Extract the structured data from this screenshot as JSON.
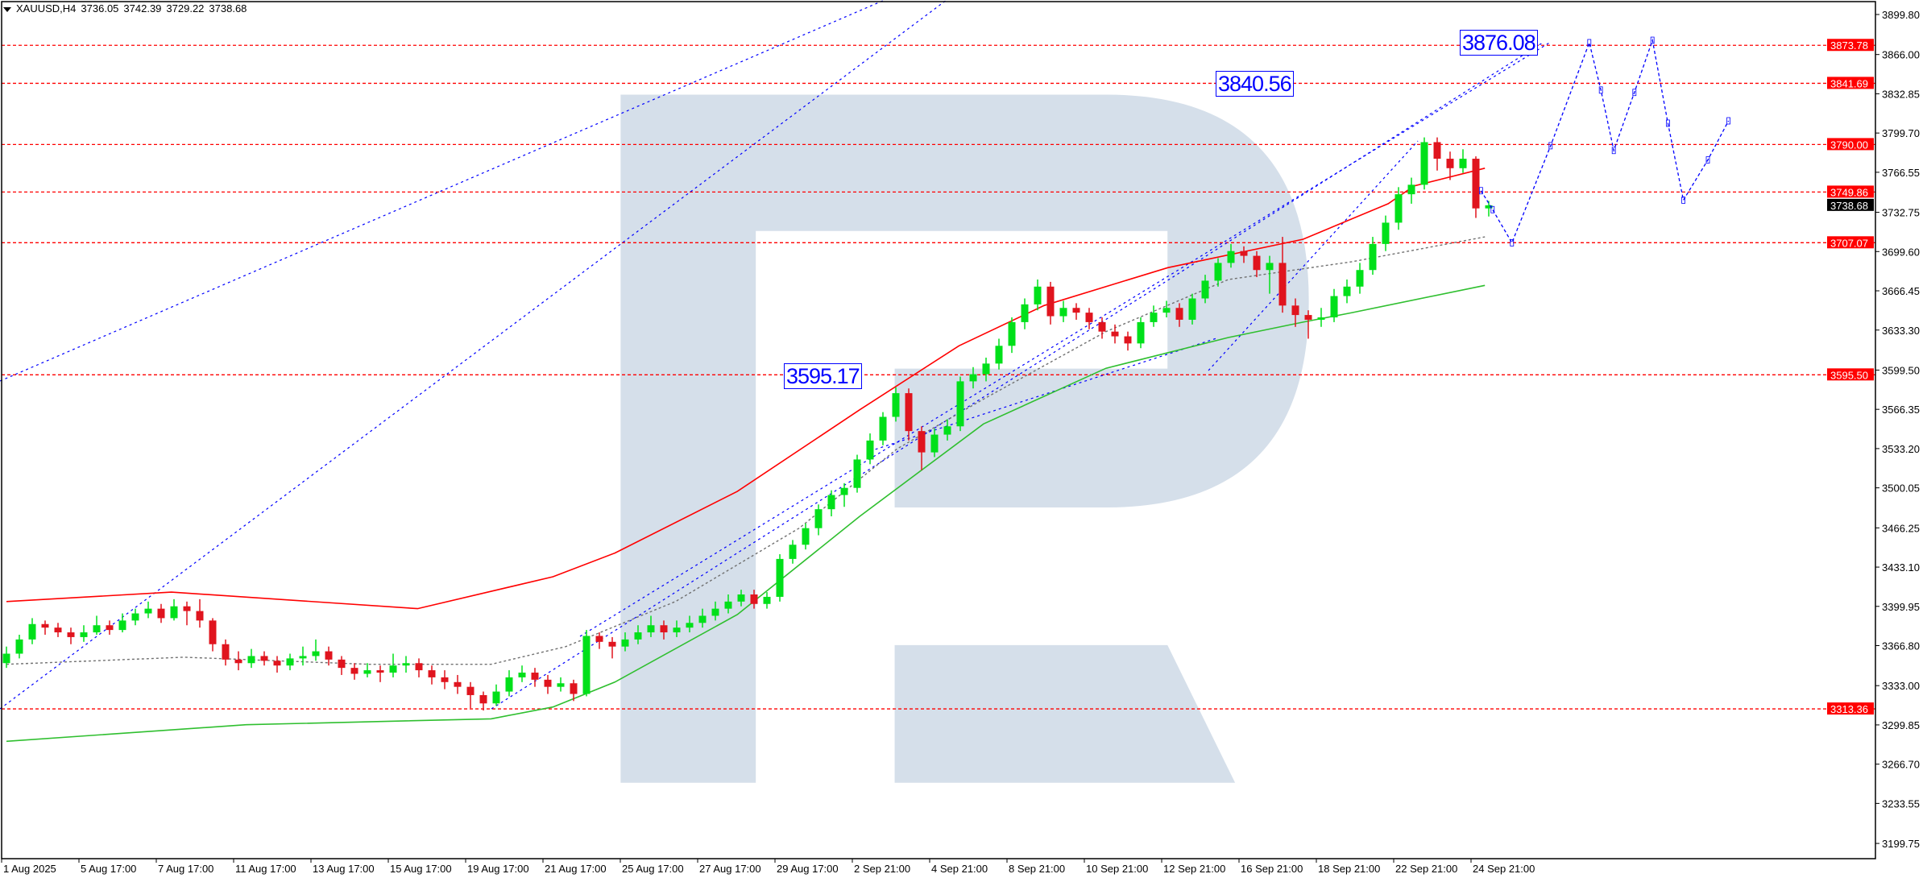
{
  "header": {
    "symbol": "XAUUSD,H4",
    "open": "3736.05",
    "high": "3742.39",
    "low": "3729.22",
    "close": "3738.68"
  },
  "colors": {
    "bull": "#00e01a",
    "bear": "#e0141e",
    "upper_band": "#ff0000",
    "lower_band": "#2fbf2f",
    "middle_band": "#707070",
    "levels": "#ff0000",
    "forecast": "#0000ff",
    "watermark": "#d5dfea"
  },
  "annotations": [
    {
      "text": "3595.17",
      "price": 3595.17
    },
    {
      "text": "3840.56",
      "price": 3840.56
    },
    {
      "text": "3876.08",
      "price": 3876.08
    }
  ],
  "chart_data": {
    "type": "candlestick",
    "symbol": "XAUUSD",
    "timeframe": "H4",
    "ylim": [
      3186,
      3912
    ],
    "y_ticks": [
      "3899.80",
      "3866.00",
      "3832.85",
      "3799.70",
      "3766.55",
      "3732.75",
      "3699.60",
      "3666.45",
      "3633.30",
      "3599.50",
      "3566.35",
      "3533.20",
      "3500.05",
      "3466.25",
      "3433.10",
      "3399.95",
      "3366.80",
      "3333.00",
      "3299.85",
      "3266.70",
      "3233.55",
      "3199.75"
    ],
    "x_ticks": [
      "1 Aug 2025",
      "5 Aug 17:00",
      "7 Aug 17:00",
      "11 Aug 17:00",
      "13 Aug 17:00",
      "15 Aug 17:00",
      "19 Aug 17:00",
      "21 Aug 17:00",
      "25 Aug 17:00",
      "27 Aug 17:00",
      "29 Aug 17:00",
      "2 Sep 21:00",
      "4 Sep 21:00",
      "8 Sep 21:00",
      "10 Sep 21:00",
      "12 Sep 21:00",
      "16 Sep 21:00",
      "18 Sep 21:00",
      "22 Sep 21:00",
      "24 Sep 21:00"
    ],
    "levels": [
      "3873.78",
      "3841.69",
      "3790.00",
      "3749.86",
      "3707.07",
      "3595.50",
      "3313.36"
    ],
    "current_price": "3738.68",
    "ohlc": [
      [
        3352,
        3366,
        3348,
        3360
      ],
      [
        3360,
        3376,
        3356,
        3372
      ],
      [
        3372,
        3390,
        3368,
        3385
      ],
      [
        3385,
        3388,
        3376,
        3382
      ],
      [
        3382,
        3386,
        3374,
        3378
      ],
      [
        3378,
        3382,
        3368,
        3374
      ],
      [
        3374,
        3384,
        3370,
        3378
      ],
      [
        3378,
        3392,
        3376,
        3384
      ],
      [
        3384,
        3388,
        3376,
        3380
      ],
      [
        3380,
        3394,
        3378,
        3388
      ],
      [
        3388,
        3398,
        3384,
        3394
      ],
      [
        3394,
        3404,
        3390,
        3398
      ],
      [
        3398,
        3402,
        3386,
        3390
      ],
      [
        3390,
        3406,
        3388,
        3400
      ],
      [
        3400,
        3404,
        3384,
        3396
      ],
      [
        3396,
        3406,
        3382,
        3388
      ],
      [
        3388,
        3390,
        3362,
        3368
      ],
      [
        3368,
        3372,
        3350,
        3355
      ],
      [
        3355,
        3362,
        3346,
        3352
      ],
      [
        3352,
        3364,
        3348,
        3358
      ],
      [
        3358,
        3362,
        3350,
        3354
      ],
      [
        3354,
        3358,
        3344,
        3350
      ],
      [
        3350,
        3360,
        3346,
        3356
      ],
      [
        3356,
        3366,
        3350,
        3358
      ],
      [
        3358,
        3372,
        3354,
        3362
      ],
      [
        3362,
        3366,
        3350,
        3355
      ],
      [
        3355,
        3358,
        3342,
        3348
      ],
      [
        3348,
        3352,
        3338,
        3343
      ],
      [
        3343,
        3352,
        3340,
        3346
      ],
      [
        3346,
        3350,
        3336,
        3344
      ],
      [
        3344,
        3360,
        3340,
        3350
      ],
      [
        3350,
        3358,
        3344,
        3352
      ],
      [
        3352,
        3356,
        3340,
        3346
      ],
      [
        3346,
        3350,
        3334,
        3340
      ],
      [
        3340,
        3346,
        3330,
        3336
      ],
      [
        3336,
        3342,
        3326,
        3332
      ],
      [
        3332,
        3336,
        3314,
        3325
      ],
      [
        3325,
        3328,
        3312,
        3318
      ],
      [
        3318,
        3334,
        3316,
        3328
      ],
      [
        3328,
        3346,
        3324,
        3340
      ],
      [
        3340,
        3350,
        3336,
        3344
      ],
      [
        3344,
        3348,
        3332,
        3338
      ],
      [
        3338,
        3342,
        3326,
        3332
      ],
      [
        3332,
        3340,
        3328,
        3335
      ],
      [
        3335,
        3338,
        3320,
        3326
      ],
      [
        3326,
        3380,
        3324,
        3375
      ],
      [
        3375,
        3378,
        3364,
        3370
      ],
      [
        3370,
        3374,
        3356,
        3366
      ],
      [
        3366,
        3378,
        3362,
        3372
      ],
      [
        3372,
        3384,
        3368,
        3378
      ],
      [
        3378,
        3392,
        3374,
        3384
      ],
      [
        3384,
        3388,
        3372,
        3378
      ],
      [
        3378,
        3388,
        3374,
        3382
      ],
      [
        3382,
        3392,
        3378,
        3386
      ],
      [
        3386,
        3398,
        3382,
        3392
      ],
      [
        3392,
        3404,
        3388,
        3398
      ],
      [
        3398,
        3410,
        3394,
        3404
      ],
      [
        3404,
        3414,
        3400,
        3410
      ],
      [
        3410,
        3414,
        3398,
        3402
      ],
      [
        3402,
        3412,
        3398,
        3408
      ],
      [
        3408,
        3444,
        3404,
        3440
      ],
      [
        3440,
        3456,
        3436,
        3452
      ],
      [
        3452,
        3470,
        3448,
        3466
      ],
      [
        3466,
        3486,
        3460,
        3482
      ],
      [
        3482,
        3498,
        3476,
        3494
      ],
      [
        3494,
        3504,
        3484,
        3500
      ],
      [
        3500,
        3528,
        3496,
        3524
      ],
      [
        3524,
        3546,
        3520,
        3540
      ],
      [
        3540,
        3564,
        3536,
        3560
      ],
      [
        3560,
        3585,
        3556,
        3580
      ],
      [
        3580,
        3584,
        3540,
        3548
      ],
      [
        3548,
        3552,
        3515,
        3530
      ],
      [
        3530,
        3550,
        3526,
        3545
      ],
      [
        3545,
        3558,
        3540,
        3552
      ],
      [
        3552,
        3594,
        3548,
        3590
      ],
      [
        3590,
        3602,
        3584,
        3596
      ],
      [
        3596,
        3610,
        3590,
        3605
      ],
      [
        3605,
        3626,
        3600,
        3620
      ],
      [
        3620,
        3644,
        3614,
        3640
      ],
      [
        3640,
        3660,
        3634,
        3655
      ],
      [
        3655,
        3676,
        3650,
        3670
      ],
      [
        3670,
        3674,
        3638,
        3645
      ],
      [
        3645,
        3658,
        3640,
        3652
      ],
      [
        3652,
        3656,
        3642,
        3648
      ],
      [
        3648,
        3652,
        3634,
        3640
      ],
      [
        3640,
        3644,
        3626,
        3632
      ],
      [
        3632,
        3638,
        3622,
        3628
      ],
      [
        3628,
        3632,
        3616,
        3622
      ],
      [
        3622,
        3644,
        3618,
        3640
      ],
      [
        3640,
        3654,
        3636,
        3648
      ],
      [
        3648,
        3658,
        3644,
        3652
      ],
      [
        3652,
        3656,
        3636,
        3642
      ],
      [
        3642,
        3664,
        3638,
        3660
      ],
      [
        3660,
        3680,
        3656,
        3675
      ],
      [
        3675,
        3694,
        3670,
        3690
      ],
      [
        3690,
        3706,
        3686,
        3700
      ],
      [
        3700,
        3704,
        3690,
        3696
      ],
      [
        3696,
        3700,
        3678,
        3684
      ],
      [
        3684,
        3696,
        3664,
        3690
      ],
      [
        3690,
        3712,
        3648,
        3654
      ],
      [
        3654,
        3660,
        3636,
        3646
      ],
      [
        3646,
        3650,
        3626,
        3642
      ],
      [
        3642,
        3652,
        3636,
        3644
      ],
      [
        3644,
        3668,
        3640,
        3662
      ],
      [
        3662,
        3676,
        3656,
        3670
      ],
      [
        3670,
        3690,
        3664,
        3684
      ],
      [
        3684,
        3712,
        3680,
        3706
      ],
      [
        3706,
        3730,
        3700,
        3724
      ],
      [
        3724,
        3754,
        3718,
        3748
      ],
      [
        3748,
        3762,
        3740,
        3756
      ],
      [
        3756,
        3796,
        3752,
        3792
      ],
      [
        3792,
        3796,
        3768,
        3778
      ],
      [
        3778,
        3784,
        3760,
        3770
      ],
      [
        3770,
        3786,
        3766,
        3778
      ],
      [
        3778,
        3780,
        3728,
        3736.05
      ],
      [
        3736.05,
        3742.39,
        3729.22,
        3738.68
      ]
    ],
    "upper_band": [
      [
        0,
        3404
      ],
      [
        12.8,
        3412
      ],
      [
        31.9,
        3398
      ],
      [
        42.4,
        3425
      ],
      [
        47.2,
        3445
      ],
      [
        56.7,
        3497
      ],
      [
        66.2,
        3566
      ],
      [
        73.9,
        3620
      ],
      [
        80.5,
        3654
      ],
      [
        90.1,
        3686
      ],
      [
        100.6,
        3710
      ],
      [
        107.2,
        3740
      ],
      [
        109.2,
        3755
      ],
      [
        114.7,
        3770
      ]
    ],
    "lower_band": [
      [
        0,
        3286
      ],
      [
        18.6,
        3300
      ],
      [
        37.6,
        3305
      ],
      [
        42.4,
        3315
      ],
      [
        47.2,
        3336
      ],
      [
        56.7,
        3393
      ],
      [
        66.2,
        3476
      ],
      [
        75.8,
        3554
      ],
      [
        85.3,
        3601
      ],
      [
        94.8,
        3627
      ],
      [
        100.6,
        3640
      ],
      [
        104.4,
        3648
      ],
      [
        114.7,
        3671
      ]
    ],
    "middle_band": [
      [
        0,
        3351
      ],
      [
        13.8,
        3357
      ],
      [
        28.1,
        3351
      ],
      [
        37.6,
        3351
      ],
      [
        43.4,
        3366
      ],
      [
        51.9,
        3404
      ],
      [
        61.5,
        3466
      ],
      [
        69.1,
        3533
      ],
      [
        75.8,
        3575
      ],
      [
        85.3,
        3632
      ],
      [
        94.8,
        3676
      ],
      [
        104.4,
        3691
      ],
      [
        114.7,
        3712
      ]
    ],
    "forecast": [
      [
        114.4,
        3751
      ],
      [
        115.3,
        3735
      ],
      [
        116.8,
        3707
      ],
      [
        119.8,
        3789
      ],
      [
        122.8,
        3876
      ],
      [
        123.7,
        3836
      ],
      [
        124.7,
        3785
      ],
      [
        126.3,
        3834
      ],
      [
        127.7,
        3878
      ],
      [
        128.9,
        3808
      ],
      [
        130.1,
        3743
      ],
      [
        132,
        3777
      ],
      [
        133.6,
        3810
      ]
    ]
  }
}
